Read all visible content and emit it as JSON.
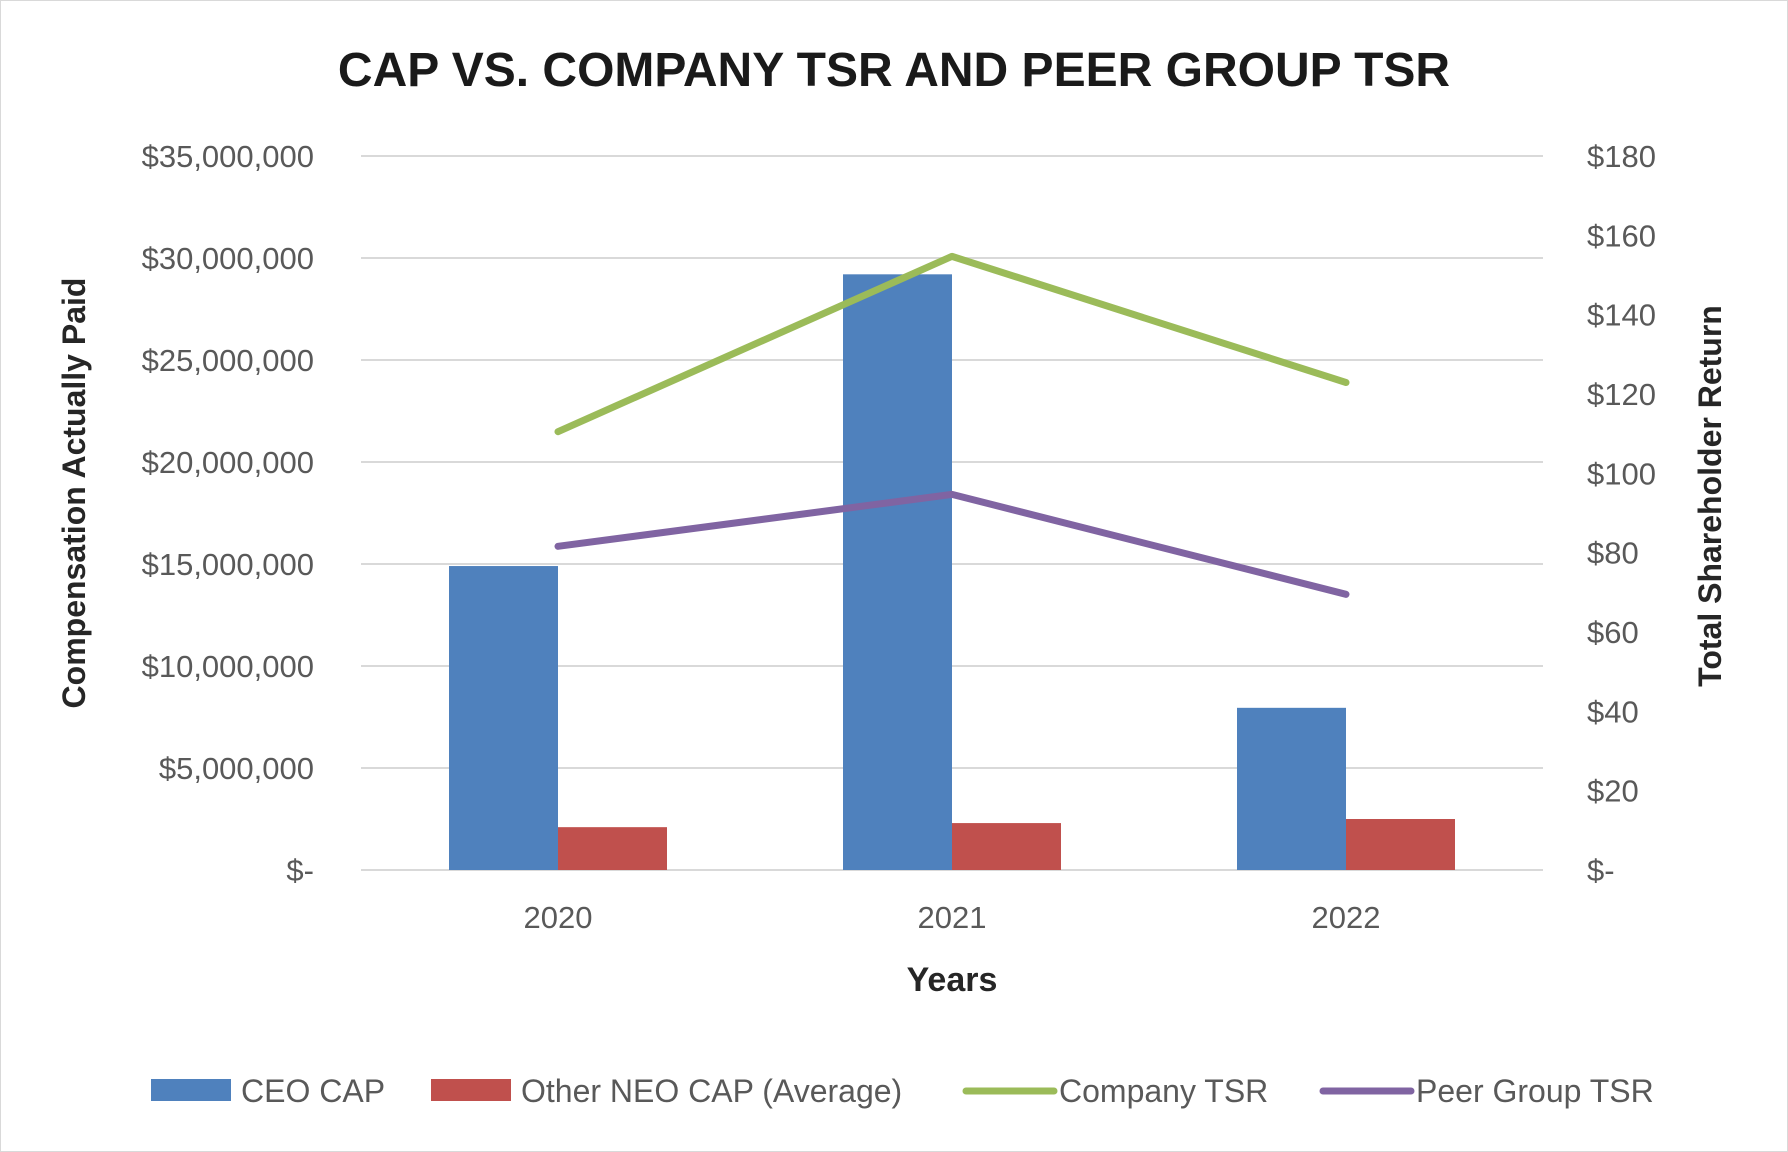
{
  "chart_data": {
    "type": "bar",
    "title": "CAP VS. COMPANY TSR AND PEER GROUP TSR",
    "xlabel": "Years",
    "ylabel": "Compensation Actually Paid",
    "y2label": "Total Shareholder Return",
    "categories": [
      "2020",
      "2021",
      "2022"
    ],
    "ylim": [
      0,
      35000000
    ],
    "y2lim": [
      0,
      180
    ],
    "yticks": [
      {
        "value": 0,
        "label": "$-"
      },
      {
        "value": 5000000,
        "label": "$5,000,000"
      },
      {
        "value": 10000000,
        "label": "$10,000,000"
      },
      {
        "value": 15000000,
        "label": "$15,000,000"
      },
      {
        "value": 20000000,
        "label": "$20,000,000"
      },
      {
        "value": 25000000,
        "label": "$25,000,000"
      },
      {
        "value": 30000000,
        "label": "$30,000,000"
      },
      {
        "value": 35000000,
        "label": "$35,000,000"
      }
    ],
    "y2ticks": [
      {
        "value": 0,
        "label": "$-"
      },
      {
        "value": 20,
        "label": "$20"
      },
      {
        "value": 40,
        "label": "$40"
      },
      {
        "value": 60,
        "label": "$60"
      },
      {
        "value": 80,
        "label": "$80"
      },
      {
        "value": 100,
        "label": "$100"
      },
      {
        "value": 120,
        "label": "$120"
      },
      {
        "value": 140,
        "label": "$140"
      },
      {
        "value": 160,
        "label": "$160"
      },
      {
        "value": 180,
        "label": "$180"
      }
    ],
    "grid": true,
    "legend_position": "bottom",
    "series": [
      {
        "name": "CEO CAP",
        "type": "bar",
        "axis": "left",
        "color": "#4f81bd",
        "values": [
          14900000,
          29200000,
          7950000
        ]
      },
      {
        "name": "Other NEO CAP (Average)",
        "type": "bar",
        "axis": "left",
        "color": "#c0504d",
        "values": [
          2100000,
          2300000,
          2500000
        ]
      },
      {
        "name": "Company TSR",
        "type": "line",
        "axis": "right",
        "color": "#9bbb59",
        "values": [
          110.5,
          154.7,
          122.9
        ]
      },
      {
        "name": "Peer Group TSR",
        "type": "line",
        "axis": "right",
        "color": "#8064a2",
        "values": [
          81.6,
          94.7,
          69.5
        ]
      }
    ]
  }
}
